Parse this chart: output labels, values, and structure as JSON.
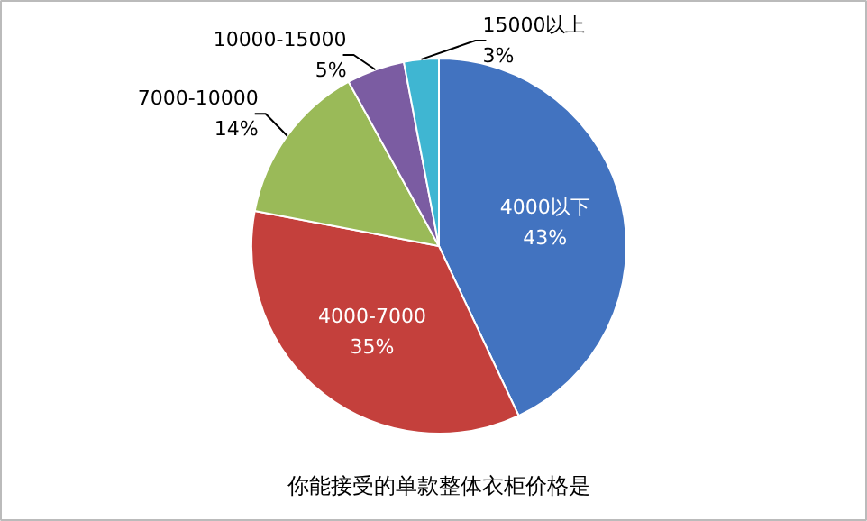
{
  "chart_data": {
    "type": "pie",
    "title": "你能接受的单款整体衣柜价格是",
    "categories": [
      "4000以下",
      "4000-7000",
      "7000-10000",
      "10000-15000",
      "15000以上"
    ],
    "values": [
      43,
      35,
      14,
      5,
      3
    ],
    "value_labels": [
      "43%",
      "35%",
      "14%",
      "5%",
      "3%"
    ],
    "colors": [
      "#4273c0",
      "#c4403c",
      "#9aba58",
      "#7b5ca2",
      "#3fb6d2"
    ],
    "data_labels": true
  }
}
